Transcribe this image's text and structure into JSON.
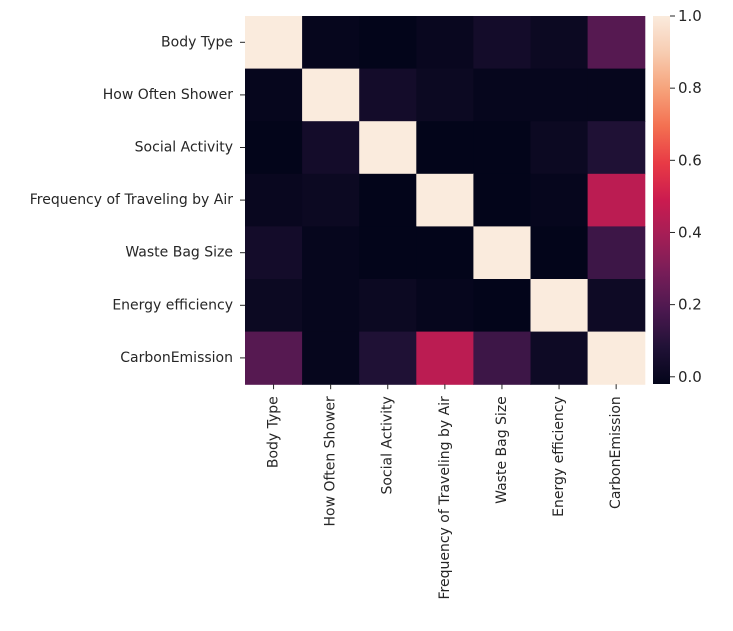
{
  "chart_data": {
    "type": "heatmap",
    "title": "",
    "xlabel": "",
    "ylabel": "",
    "rows": [
      "Body Type",
      "How Often Shower",
      "Social Activity",
      "Frequency of Traveling by Air",
      "Waste Bag Size",
      "Energy efficiency",
      "CarbonEmission"
    ],
    "columns": [
      "Body Type",
      "How Often Shower",
      "Social Activity",
      "Frequency of Traveling by Air",
      "Waste Bag Size",
      "Energy efficiency",
      "CarbonEmission"
    ],
    "values": [
      [
        1.0,
        -0.01,
        -0.02,
        0.0,
        0.04,
        0.01,
        0.21
      ],
      [
        -0.01,
        1.0,
        0.04,
        0.01,
        -0.01,
        -0.01,
        -0.01
      ],
      [
        -0.02,
        0.04,
        1.0,
        -0.02,
        -0.02,
        0.01,
        0.08
      ],
      [
        0.0,
        0.01,
        -0.02,
        1.0,
        -0.02,
        -0.01,
        0.45
      ],
      [
        0.04,
        -0.01,
        -0.02,
        -0.02,
        1.0,
        -0.02,
        0.15
      ],
      [
        0.01,
        -0.01,
        0.01,
        -0.01,
        -0.02,
        1.0,
        0.02
      ],
      [
        0.21,
        -0.01,
        0.08,
        0.45,
        0.15,
        0.02,
        1.0
      ]
    ],
    "vmin": -0.02,
    "vmax": 1.0,
    "colormap": "rocket",
    "colorbar_ticks": [
      0.0,
      0.2,
      0.4,
      0.6,
      0.8,
      1.0
    ],
    "colorbar_tick_labels": [
      "0.0",
      "0.2",
      "0.4",
      "0.6",
      "0.8",
      "1.0"
    ],
    "grid": false,
    "colorbar_placement": "right"
  }
}
